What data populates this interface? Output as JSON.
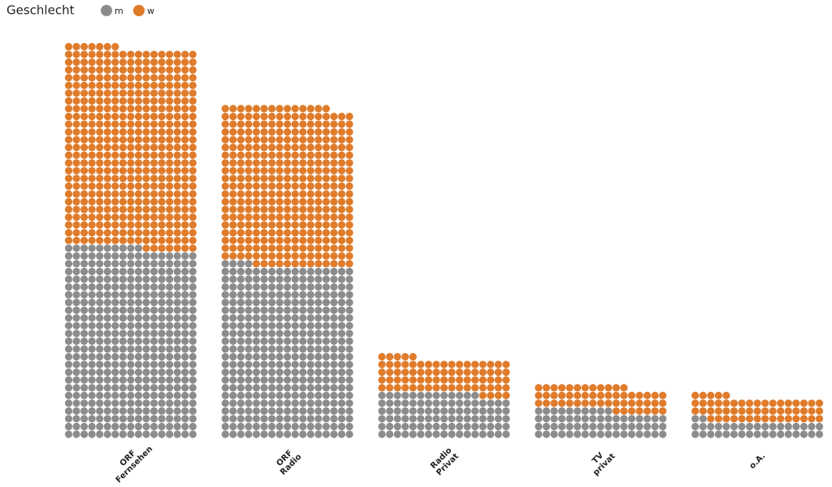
{
  "chart_data": {
    "type": "waffle",
    "legend_title": "Geschlecht",
    "categories": [
      [
        "ORF",
        "Fernsehen"
      ],
      [
        "ORF",
        "Radio"
      ],
      [
        "Radio",
        "Privat"
      ],
      [
        "TV",
        "privat"
      ],
      [
        "o.A."
      ]
    ],
    "series": [
      {
        "name": "m",
        "color": "#8c8c8c",
        "values": [
          418,
          378,
          98,
          61,
          36
        ]
      },
      {
        "name": "w",
        "color": "#e07b2a",
        "values": [
          439,
          350,
          77,
          53,
          54
        ]
      }
    ],
    "columns": 17
  }
}
